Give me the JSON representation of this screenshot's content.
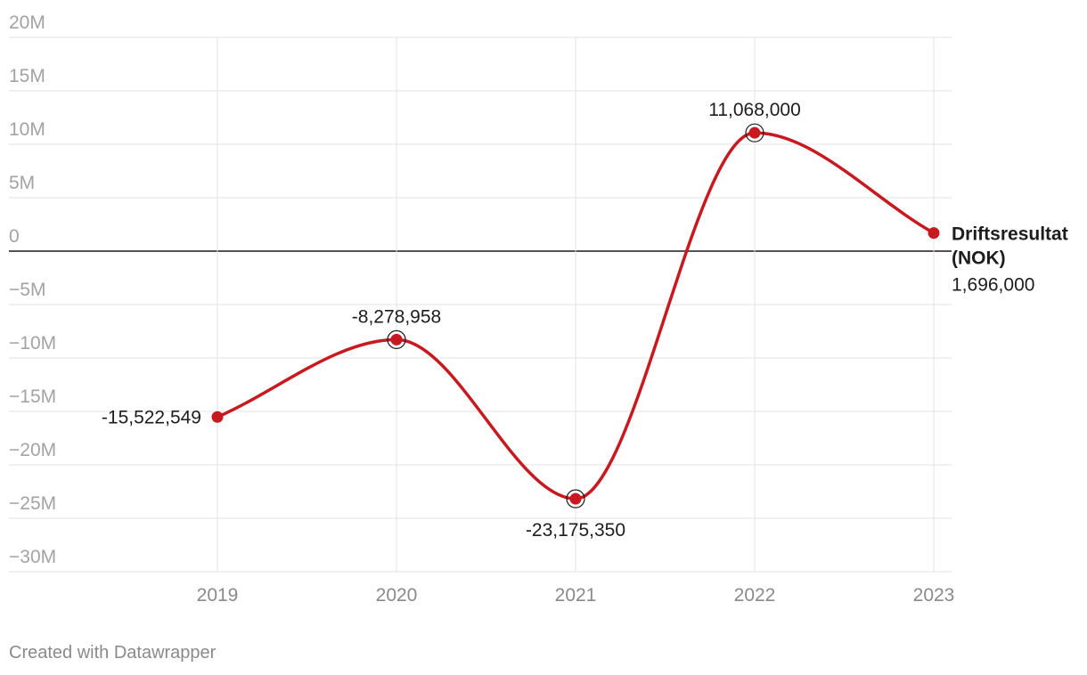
{
  "chart_data": {
    "type": "line",
    "x": [
      2019,
      2020,
      2021,
      2022,
      2023
    ],
    "categories": [
      "2019",
      "2020",
      "2021",
      "2022",
      "2023"
    ],
    "series": [
      {
        "name": "Driftsresultat (NOK)",
        "values": [
          -15522549,
          -8278958,
          -23175350,
          11068000,
          1696000
        ]
      }
    ],
    "data_labels": [
      "-15,522,549",
      "-8,278,958",
      "-23,175,350",
      "11,068,000",
      "1,696,000"
    ],
    "series_label_lines": [
      "Driftsresultat",
      "(NOK)"
    ],
    "yticks": [
      20000000,
      15000000,
      10000000,
      5000000,
      0,
      -5000000,
      -10000000,
      -15000000,
      -20000000,
      -25000000,
      -30000000
    ],
    "ytick_labels": [
      "20M",
      "15M",
      "10M",
      "5M",
      "0",
      "−5M",
      "−10M",
      "−15M",
      "−20M",
      "−25M",
      "−30M"
    ],
    "ylim": [
      -30000000,
      20000000
    ],
    "grid": true,
    "line_color": "#c7191f",
    "highlighted_points": [
      "2020",
      "2021",
      "2022"
    ]
  },
  "footer": {
    "credit": "Created with Datawrapper"
  }
}
